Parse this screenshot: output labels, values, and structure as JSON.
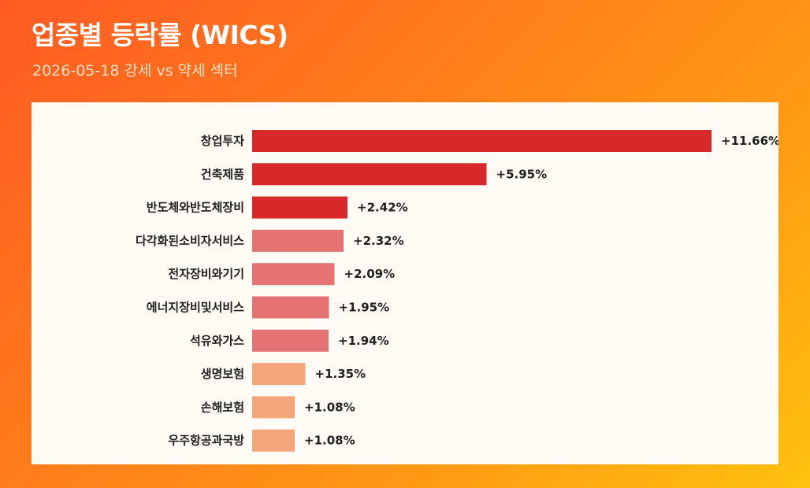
{
  "header": {
    "title": "업종별 등락률 (WICS)",
    "subtitle": "2026-05-18 강세 vs 약세 섹터"
  },
  "colors": {
    "strong": "#d7282a",
    "medium": "#e57373",
    "light": "#f2a679"
  },
  "chart_data": {
    "type": "bar",
    "orientation": "horizontal",
    "categories": [
      "창업투자",
      "건축제품",
      "반도체와반도체장비",
      "다각화된소비자서비스",
      "전자장비와기기",
      "에너지장비및서비스",
      "석유와가스",
      "생명보험",
      "손해보험",
      "우주항공과국방"
    ],
    "values": [
      11.66,
      5.95,
      2.42,
      2.32,
      2.09,
      1.95,
      1.94,
      1.35,
      1.08,
      1.08
    ],
    "value_labels": [
      "+11.66%",
      "+5.95%",
      "+2.42%",
      "+2.32%",
      "+2.09%",
      "+1.95%",
      "+1.94%",
      "+1.35%",
      "+1.08%",
      "+1.08%"
    ],
    "bar_colors": [
      "#d7282a",
      "#d7282a",
      "#d7282a",
      "#e57373",
      "#e57373",
      "#e57373",
      "#e57373",
      "#f2a679",
      "#f2a679",
      "#f2a679"
    ],
    "xlim": [
      0,
      11.66
    ],
    "grid": false,
    "legend": "none"
  }
}
